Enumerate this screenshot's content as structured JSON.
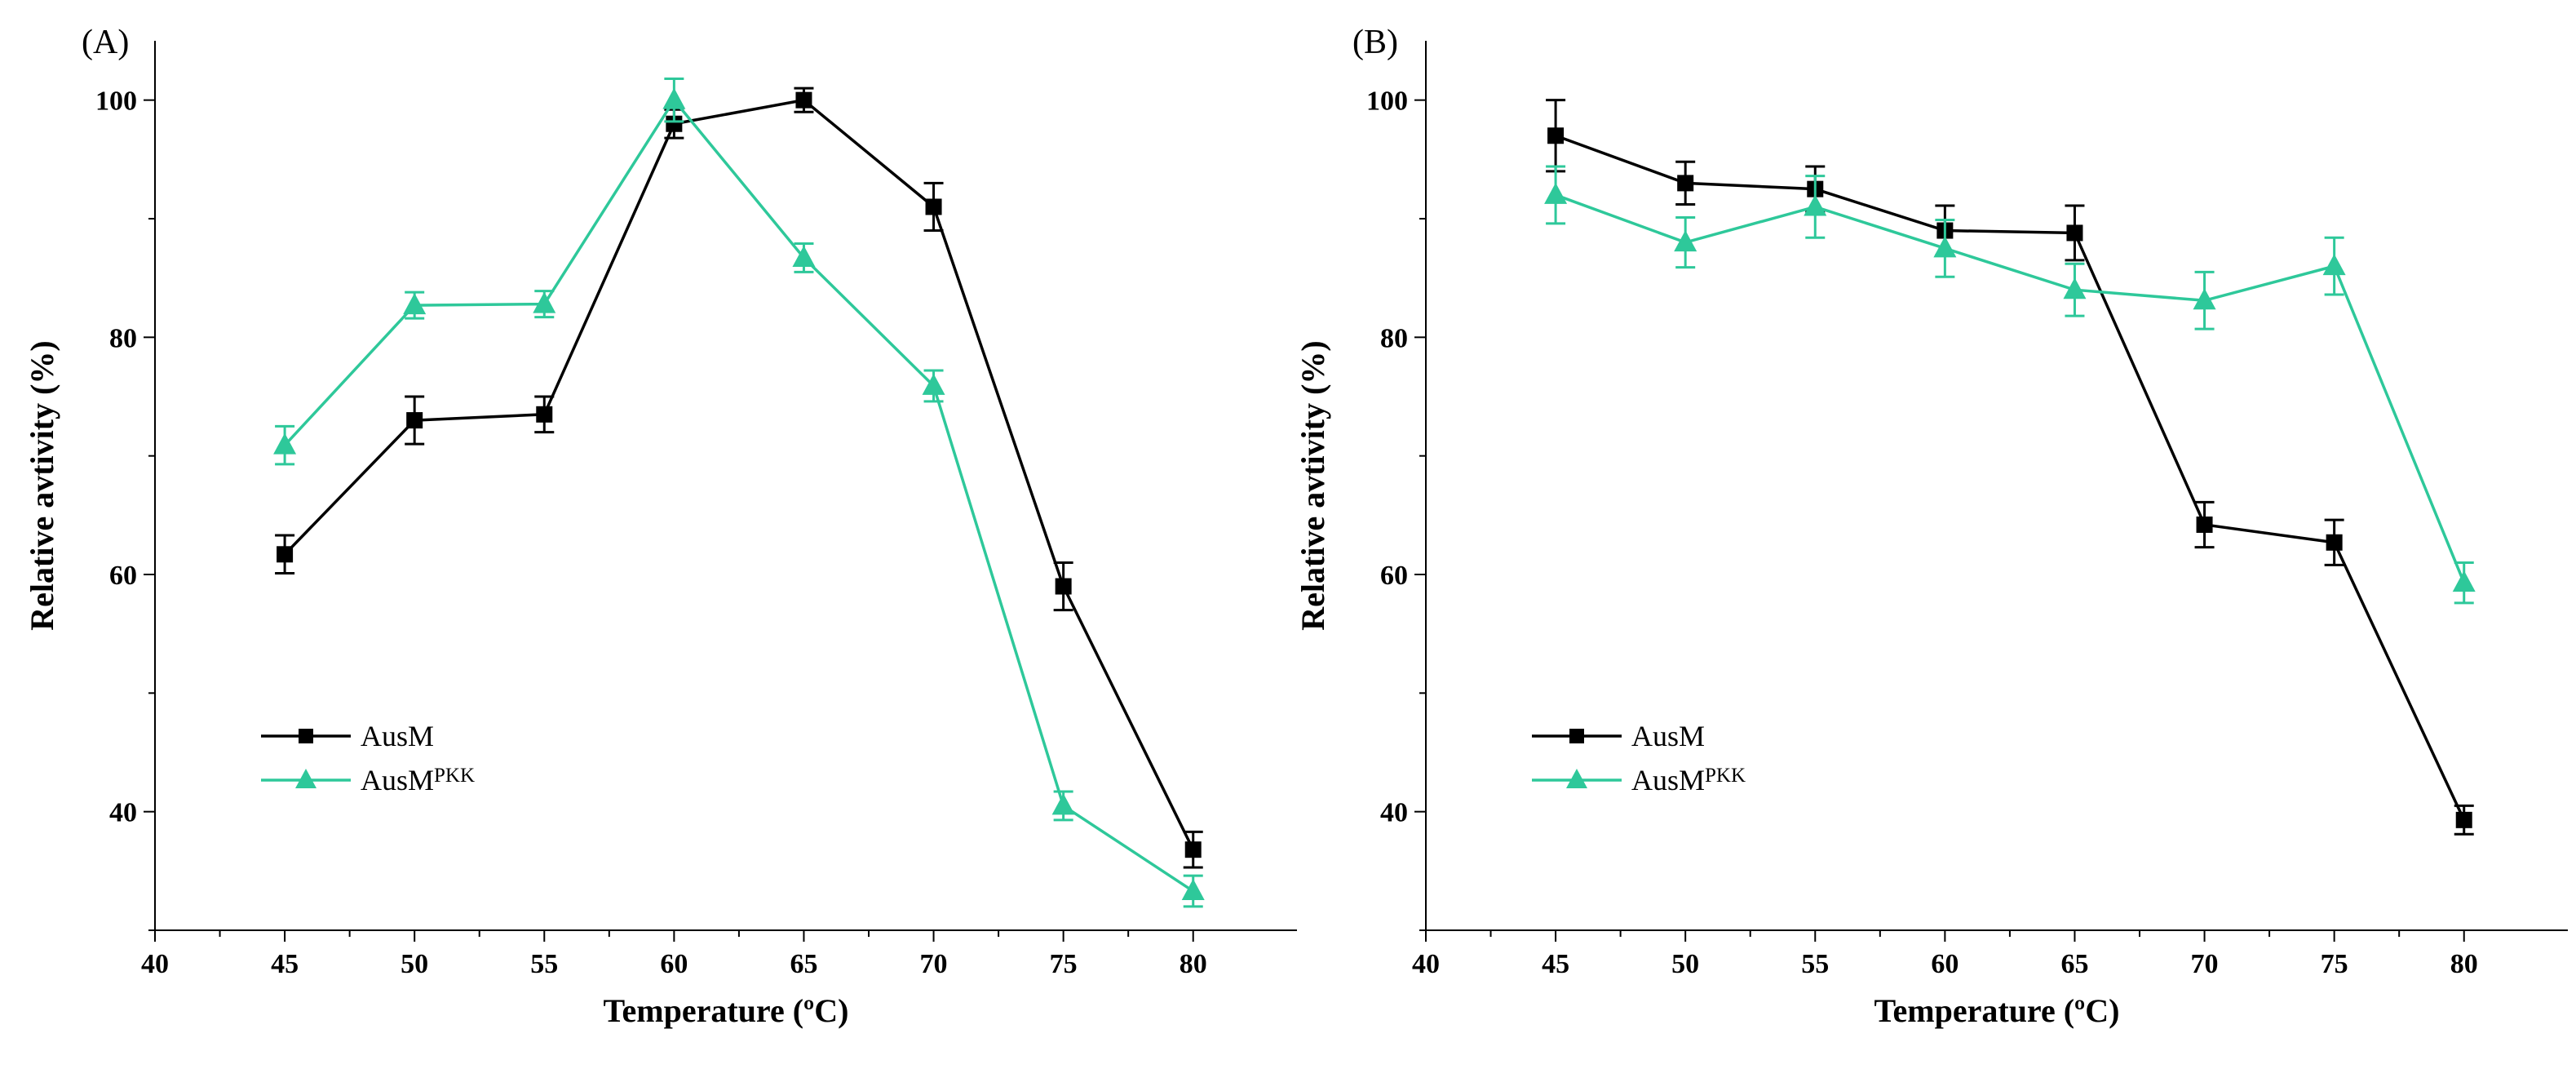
{
  "chart_data": [
    {
      "panel": "(A)",
      "type": "line",
      "xlabel": "Temperature (ºC)",
      "ylabel": "Relative avtivity (%)",
      "xlim": [
        40,
        84
      ],
      "ylim": [
        30,
        105
      ],
      "xticks": [
        40,
        45,
        50,
        55,
        60,
        65,
        70,
        75,
        80
      ],
      "yticks": [
        40,
        60,
        80,
        100
      ],
      "legend_position": "lower-left",
      "series": [
        {
          "name": "AusM",
          "color": "#000000",
          "marker": "square",
          "x": [
            45,
            50,
            55,
            60,
            65,
            70,
            75,
            80
          ],
          "y": [
            61.7,
            73.0,
            73.5,
            98.0,
            100.0,
            91.0,
            59.0,
            36.8
          ],
          "err": [
            1.6,
            2.0,
            1.5,
            1.2,
            1.0,
            2.0,
            2.0,
            1.5
          ]
        },
        {
          "name": "AusMPKK",
          "name_base": "AusM",
          "name_sup": "PKK",
          "color": "#2ec89a",
          "marker": "triangle",
          "x": [
            45,
            50,
            55,
            60,
            65,
            70,
            75,
            80
          ],
          "y": [
            70.9,
            82.7,
            82.8,
            100.0,
            86.7,
            75.9,
            40.5,
            33.3
          ],
          "err": [
            1.6,
            1.1,
            1.1,
            1.8,
            1.2,
            1.3,
            1.2,
            1.3
          ]
        }
      ]
    },
    {
      "panel": "(B)",
      "type": "line",
      "xlabel": "Temperature (ºC)",
      "ylabel": "Relative avtivity (%)",
      "xlim": [
        40,
        84
      ],
      "ylim": [
        30,
        105
      ],
      "xticks": [
        40,
        45,
        50,
        55,
        60,
        65,
        70,
        75,
        80
      ],
      "yticks": [
        40,
        60,
        80,
        100
      ],
      "legend_position": "lower-left",
      "series": [
        {
          "name": "AusM",
          "color": "#000000",
          "marker": "square",
          "x": [
            45,
            50,
            55,
            60,
            65,
            70,
            75,
            80
          ],
          "y": [
            97.0,
            93.0,
            92.5,
            89.0,
            88.8,
            64.2,
            62.7,
            39.3
          ],
          "err": [
            3.0,
            1.8,
            1.9,
            2.1,
            2.3,
            1.9,
            1.9,
            1.2
          ]
        },
        {
          "name": "AusMPKK",
          "name_base": "AusM",
          "name_sup": "PKK",
          "color": "#2ec89a",
          "marker": "triangle",
          "x": [
            45,
            50,
            55,
            60,
            65,
            70,
            75,
            80
          ],
          "y": [
            92.0,
            88.0,
            91.0,
            87.5,
            84.0,
            83.1,
            86.0,
            59.3
          ],
          "err": [
            2.4,
            2.1,
            2.6,
            2.4,
            2.2,
            2.4,
            2.4,
            1.7
          ]
        }
      ]
    }
  ]
}
